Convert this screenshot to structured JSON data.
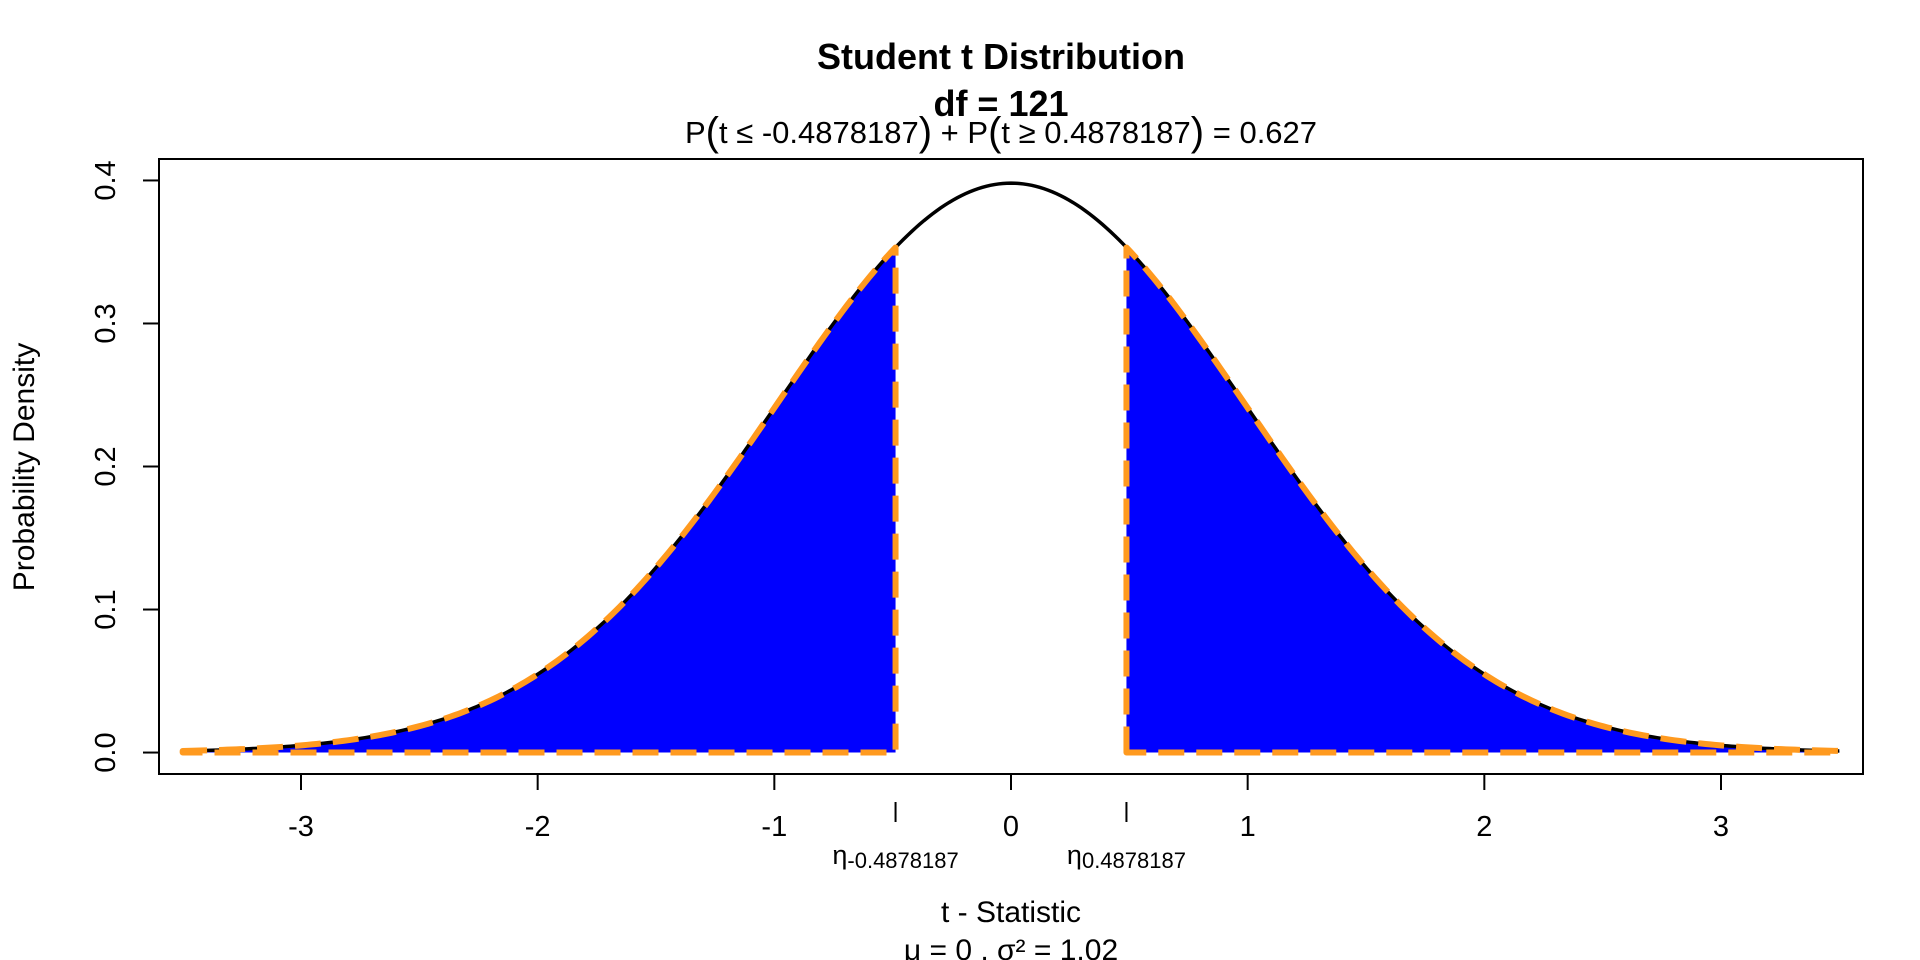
{
  "chart_data": {
    "type": "area",
    "title": "Student t Distribution",
    "title_line2": "df  =  121",
    "subtitle": "P(t ≤ -0.4878187) + P(t ≥ 0.4878187) = 0.627",
    "subtitle_parts": {
      "p1": "P",
      "inner1": "t ≤ -0.4878187",
      "plus": "+",
      "p2": "P",
      "inner2": "t ≥ 0.4878187",
      "equals": "= 0.627"
    },
    "xlabel": "t - Statistic",
    "xlabel_line2": "μ =  0 , σ² =  1.02",
    "ylabel": "Probability Density",
    "df": 121,
    "critical_values": [
      -0.4878187,
      0.4878187
    ],
    "critical_labels": [
      {
        "symbol": "η",
        "subscript": "-0.4878187"
      },
      {
        "symbol": "η",
        "subscript": "0.4878187"
      }
    ],
    "tail_probability": 0.627,
    "xlim": [
      -3.6,
      3.6
    ],
    "ylim": [
      -0.015,
      0.415
    ],
    "curve_range": [
      -3.5,
      3.5
    ],
    "x_ticks": [
      -3,
      -2,
      -1,
      0,
      1,
      2,
      3
    ],
    "x_tick_labels": [
      "-3",
      "-2",
      "-1",
      "0",
      "1",
      "2",
      "3"
    ],
    "y_ticks": [
      0.0,
      0.1,
      0.2,
      0.3,
      0.4
    ],
    "y_tick_labels": [
      "0.0",
      "0.1",
      "0.2",
      "0.3",
      "0.4"
    ],
    "colors": {
      "curve": "#000000",
      "tail_fill": "#0000ff",
      "tail_outline": "#ff9a1f"
    },
    "grid": false,
    "legend": "none"
  }
}
